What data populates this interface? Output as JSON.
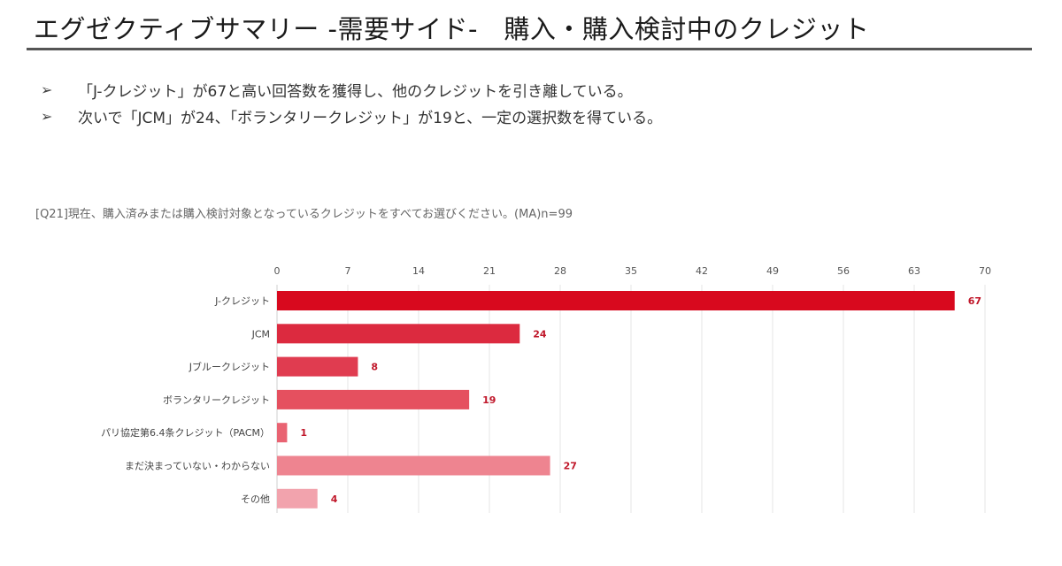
{
  "header": {
    "title": "エグゼクティブサマリー -需要サイド-　購入・購入検討中のクレジット"
  },
  "summary": {
    "bullet_icon": "arrow-bullet-icon",
    "bullets": [
      "「J-クレジット」が67と高い回答数を獲得し、他のクレジットを引き離している。",
      "次いで「JCM」が24、「ボランタリークレジット」が19と、一定の選択数を得ている。"
    ]
  },
  "question": "[Q21]現在、購入済みまたは購入検討対象となっているクレジットをすべてお選びください。(MA)n=99",
  "chart_data": {
    "type": "bar",
    "orientation": "horizontal",
    "title": "",
    "xlabel": "",
    "ylabel": "",
    "xlim": [
      0,
      70
    ],
    "ticks": [
      0,
      7,
      14,
      21,
      28,
      35,
      42,
      49,
      56,
      63,
      70
    ],
    "tick_position": "top",
    "grid": true,
    "legend": "none",
    "categories": [
      "J-クレジット",
      "JCM",
      "Jブルークレジット",
      "ボランタリークレジット",
      "パリ協定第6.4条クレジット（PACM）",
      "まだ決まっていない・わからない",
      "その他"
    ],
    "values": [
      67,
      24,
      8,
      19,
      1,
      27,
      4
    ],
    "colors": [
      "#d8091e",
      "#dc2a3f",
      "#e03c50",
      "#e5505f",
      "#e96372",
      "#ee8490",
      "#f2a3ad"
    ],
    "value_label_color": "#c0172a"
  }
}
